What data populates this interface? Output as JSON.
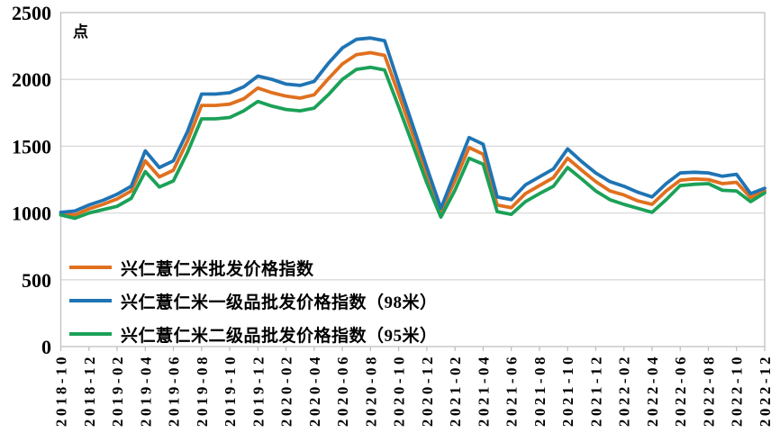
{
  "chart_data": {
    "type": "line",
    "unit": "点",
    "ylim": [
      0,
      2500
    ],
    "y_ticks": [
      0,
      500,
      1000,
      1500,
      2000,
      2500
    ],
    "x_tick_step": 2,
    "grid": "horizontal",
    "legend_position": "inside-bottom-left",
    "x": [
      "2018-10",
      "2018-11",
      "2018-12",
      "2019-01",
      "2019-02",
      "2019-03",
      "2019-04",
      "2019-05",
      "2019-06",
      "2019-07",
      "2019-08",
      "2019-09",
      "2019-10",
      "2019-11",
      "2019-12",
      "2020-01",
      "2020-02",
      "2020-03",
      "2020-04",
      "2020-05",
      "2020-06",
      "2020-07",
      "2020-08",
      "2020-09",
      "2020-10",
      "2020-11",
      "2020-12",
      "2021-01",
      "2021-02",
      "2021-03",
      "2021-04",
      "2021-05",
      "2021-06",
      "2021-07",
      "2021-08",
      "2021-09",
      "2021-10",
      "2021-11",
      "2021-12",
      "2022-01",
      "2022-02",
      "2022-03",
      "2022-04",
      "2022-05",
      "2022-06",
      "2022-07",
      "2022-08",
      "2022-09",
      "2022-10",
      "2022-11",
      "2022-12"
    ],
    "series": [
      {
        "name": "兴仁薏仁米批发价格指数",
        "color": "#E0701E",
        "values": [
          995,
          985,
          1030,
          1065,
          1105,
          1165,
          1390,
          1270,
          1320,
          1540,
          1805,
          1805,
          1815,
          1855,
          1935,
          1900,
          1875,
          1860,
          1885,
          2005,
          2115,
          2185,
          2200,
          2180,
          1890,
          1590,
          1290,
          1015,
          1240,
          1490,
          1440,
          1060,
          1040,
          1145,
          1205,
          1265,
          1410,
          1320,
          1235,
          1165,
          1135,
          1090,
          1065,
          1165,
          1245,
          1255,
          1250,
          1220,
          1230,
          1115,
          1165
        ]
      },
      {
        "name": "兴仁薏仁米一级品批发价格指数（98米）",
        "color": "#1F74B4",
        "values": [
          1005,
          1015,
          1060,
          1095,
          1140,
          1200,
          1465,
          1340,
          1390,
          1610,
          1890,
          1890,
          1900,
          1945,
          2025,
          2000,
          1965,
          1955,
          1985,
          2120,
          2235,
          2300,
          2310,
          2290,
          1970,
          1655,
          1340,
          1035,
          1300,
          1565,
          1515,
          1120,
          1100,
          1210,
          1270,
          1330,
          1480,
          1385,
          1300,
          1235,
          1200,
          1155,
          1120,
          1220,
          1300,
          1305,
          1300,
          1275,
          1290,
          1145,
          1185
        ]
      },
      {
        "name": "兴仁薏仁米二级品批发价格指数（95米）",
        "color": "#1BA158",
        "values": [
          985,
          960,
          1000,
          1025,
          1050,
          1110,
          1310,
          1195,
          1240,
          1455,
          1705,
          1705,
          1715,
          1765,
          1835,
          1800,
          1775,
          1765,
          1785,
          1885,
          2000,
          2075,
          2090,
          2070,
          1795,
          1510,
          1225,
          970,
          1170,
          1410,
          1365,
          1010,
          990,
          1085,
          1145,
          1200,
          1340,
          1255,
          1165,
          1100,
          1065,
          1035,
          1005,
          1100,
          1205,
          1215,
          1220,
          1170,
          1165,
          1085,
          1150
        ]
      }
    ]
  },
  "colors": {
    "grid": "#D9D9D9",
    "axis": "#BFBFBF",
    "text": "#000000",
    "background": "#FFFFFF"
  }
}
